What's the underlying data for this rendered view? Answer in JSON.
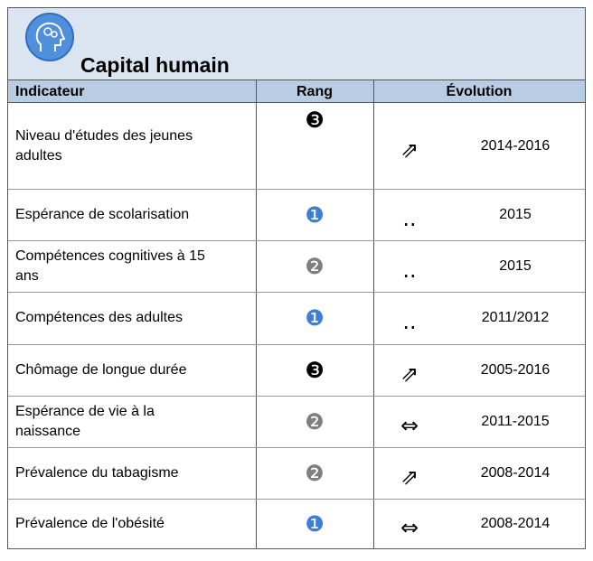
{
  "header": {
    "title": "Capital humain"
  },
  "table": {
    "columns": [
      "Indicateur",
      "Rang",
      "Évolution"
    ],
    "rows": [
      {
        "indicator": "Niveau d'études des jeunes adultes",
        "rank": "❸",
        "rank_color": "#000000",
        "trend": "⇗",
        "period": "2014-2016"
      },
      {
        "indicator": "Espérance de scolarisation",
        "rank": "❶",
        "rank_color": "#3f7ed8",
        "trend": "..",
        "period": "2015"
      },
      {
        "indicator": "Compétences cognitives à 15 ans",
        "rank": "❷",
        "rank_color": "#7f7f7f",
        "trend": "..",
        "period": "2015"
      },
      {
        "indicator": "Compétences des adultes",
        "rank": "❶",
        "rank_color": "#3f7ed8",
        "trend": "..",
        "period": "2011/2012"
      },
      {
        "indicator": "Chômage de longue durée",
        "rank": "❸",
        "rank_color": "#000000",
        "trend": "⇗",
        "period": "2005-2016"
      },
      {
        "indicator": "Espérance de vie à la naissance",
        "rank": "❷",
        "rank_color": "#7f7f7f",
        "trend": "⇔",
        "period": "2011-2015"
      },
      {
        "indicator": "Prévalence du tabagisme",
        "rank": "❷",
        "rank_color": "#7f7f7f",
        "trend": "⇗",
        "period": "2008-2014"
      },
      {
        "indicator": "Prévalence de l'obésité",
        "rank": "❶",
        "rank_color": "#3f7ed8",
        "trend": "⇔",
        "period": "2008-2014"
      }
    ]
  }
}
